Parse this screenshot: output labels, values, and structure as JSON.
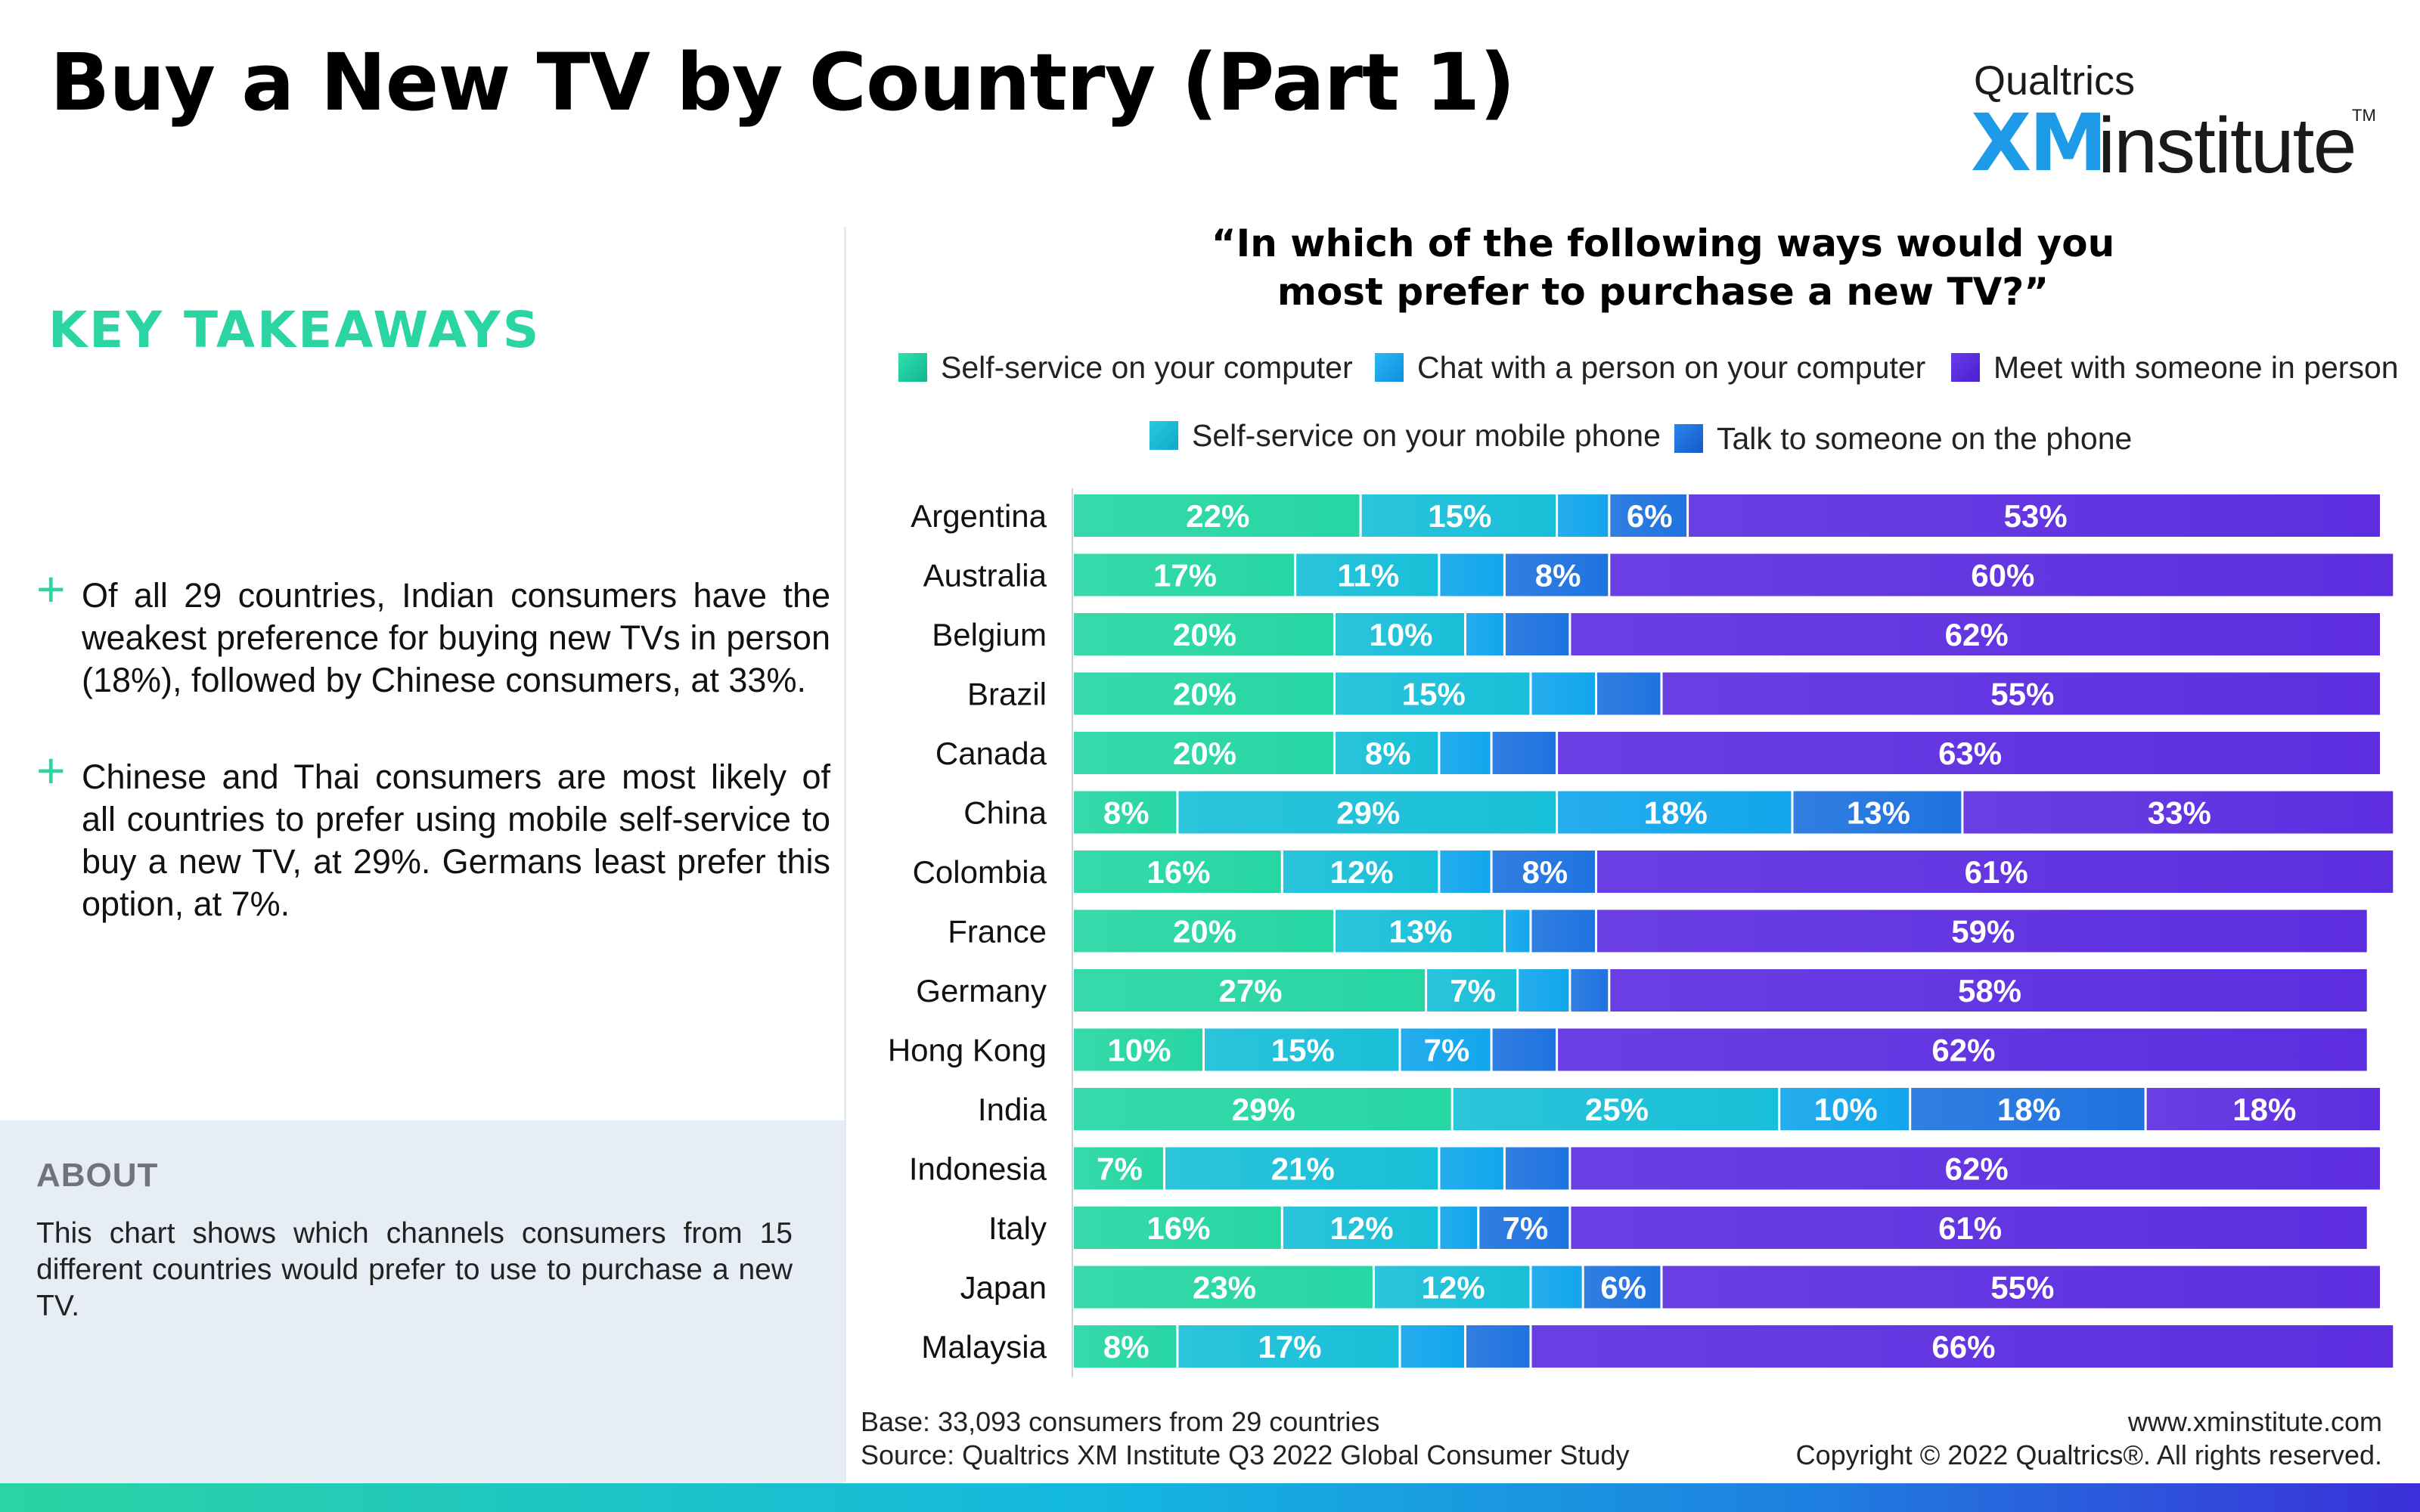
{
  "header": {
    "title": "Buy a New TV by Country (Part 1)"
  },
  "logo": {
    "brand": "Qualtrics",
    "mark": "XM",
    "product": "institute",
    "trademark": "TM"
  },
  "takeaways": {
    "heading": "KEY TAKEAWAYS",
    "items": [
      "Of all 29 countries, Indian consumers have the weakest preference for buying new TVs in person (18%), followed by Chinese consumers, at 33%.",
      "Chinese and Thai consumers are most likely of all countries to prefer using mobile self-service to buy a new TV, at 29%. Germans least prefer this option, at 7%."
    ]
  },
  "about": {
    "heading": "ABOUT",
    "text": "This chart shows which channels consumers from 15 different countries would prefer to use to purchase a new TV."
  },
  "footer": {
    "base": "Base: 33,093 consumers from 29 countries",
    "source": "Source: Qualtrics XM Institute Q3 2022 Global Consumer Study",
    "website": "www.xminstitute.com",
    "copyright": "Copyright © 2022 Qualtrics®. All rights reserved."
  },
  "chart_data": {
    "type": "bar",
    "orientation": "horizontal",
    "stacked": true,
    "title_line1": "“In which of the following ways would you",
    "title_line2": "most prefer to purchase a new TV?”",
    "value_suffix": "%",
    "label_threshold": 6,
    "xlim": [
      0,
      100
    ],
    "grid": false,
    "legend_position": "top",
    "categories": [
      "Argentina",
      "Australia",
      "Belgium",
      "Brazil",
      "Canada",
      "China",
      "Colombia",
      "France",
      "Germany",
      "Hong Kong",
      "India",
      "Indonesia",
      "Italy",
      "Japan",
      "Malaysia"
    ],
    "series": [
      {
        "name": "Self-service on your computer",
        "color": "#26d6a3",
        "values": [
          22,
          17,
          20,
          20,
          20,
          8,
          16,
          20,
          27,
          10,
          29,
          7,
          16,
          23,
          8
        ]
      },
      {
        "name": "Self-service on your mobile phone",
        "color": "#18bfd8",
        "values": [
          15,
          11,
          10,
          15,
          8,
          29,
          12,
          13,
          7,
          15,
          25,
          21,
          12,
          12,
          17
        ]
      },
      {
        "name": "Chat with a person on your computer",
        "color": "#12a6ec",
        "values": [
          4,
          5,
          3,
          5,
          4,
          18,
          4,
          2,
          4,
          7,
          10,
          5,
          3,
          4,
          5
        ]
      },
      {
        "name": "Talk to someone on the phone",
        "color": "#1f73df",
        "values": [
          6,
          8,
          5,
          5,
          5,
          13,
          8,
          5,
          3,
          5,
          18,
          5,
          7,
          6,
          5
        ]
      },
      {
        "name": "Meet with someone in person",
        "color": "#5d2ee0",
        "values": [
          53,
          60,
          62,
          55,
          63,
          33,
          61,
          59,
          58,
          62,
          18,
          62,
          61,
          55,
          66
        ]
      }
    ]
  }
}
